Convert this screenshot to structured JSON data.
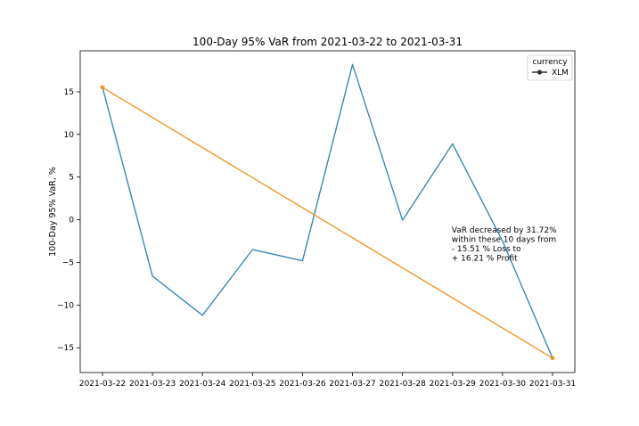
{
  "chart_data": {
    "type": "line",
    "title": "100-Day 95% VaR from 2021-03-22 to 2021-03-31",
    "xlabel": "",
    "ylabel": "100-Day 95% VaR, %",
    "x": [
      "2021-03-22",
      "2021-03-23",
      "2021-03-24",
      "2021-03-25",
      "2021-03-26",
      "2021-03-27",
      "2021-03-28",
      "2021-03-29",
      "2021-03-30",
      "2021-03-31"
    ],
    "ylim": [
      -17.9,
      19.8
    ],
    "yticks": [
      -15,
      -10,
      -5,
      0,
      5,
      10,
      15
    ],
    "ytick_labels": [
      "−15",
      "−10",
      "−5",
      "0",
      "5",
      "10",
      "15"
    ],
    "grid": false,
    "legend": {
      "title": "currency",
      "placement": "top-right",
      "entries": [
        "XLM"
      ]
    },
    "series": [
      {
        "name": "XLM",
        "color": "#3a87b8",
        "values": [
          15.51,
          -6.6,
          -11.2,
          -3.5,
          -4.8,
          18.2,
          -0.05,
          8.9,
          -2.5,
          -16.21
        ]
      },
      {
        "color": "#f0962e",
        "markers": true,
        "points": [
          {
            "x": "2021-03-22",
            "y": 15.51
          },
          {
            "x": "2021-03-31",
            "y": -16.21
          }
        ]
      }
    ],
    "annotation": {
      "lines": [
        "VaR decreased by 31.72%",
        " within these 10 days from",
        " - 15.51 % Loss to",
        " + 16.21 % Profit"
      ],
      "anchor": {
        "x": "2021-03-29",
        "y": -1.0
      }
    }
  }
}
